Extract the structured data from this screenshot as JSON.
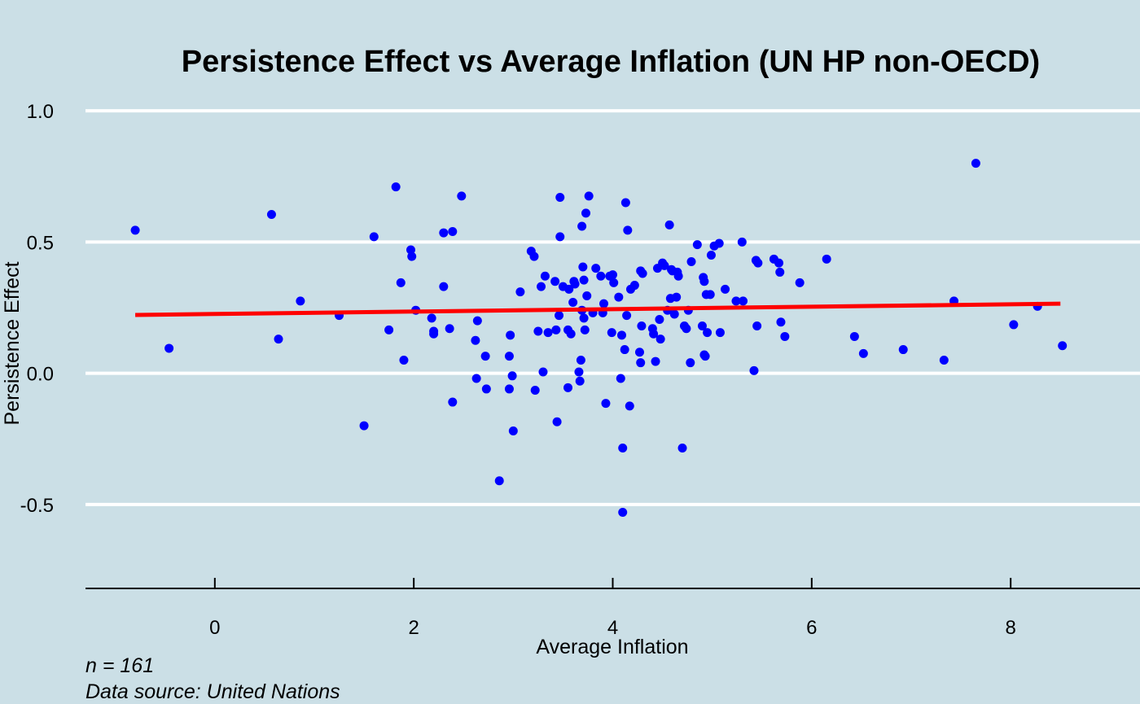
{
  "chart_data": {
    "type": "scatter",
    "title": "Persistence Effect vs Average Inflation (UN HP non-OECD)",
    "xlabel": "Average Inflation",
    "ylabel": "Persistence Effect",
    "caption_lines": [
      "n = 161",
      "Data source: United Nations"
    ],
    "xlim": [
      -1.3,
      9.3
    ],
    "ylim": [
      -0.82,
      1.05
    ],
    "x_ticks": [
      0,
      2,
      4,
      6,
      8
    ],
    "x_tick_labels": [
      "0",
      "2",
      "4",
      "6",
      "8"
    ],
    "y_ticks": [
      1.0,
      0.5,
      0.0,
      -0.5
    ],
    "y_tick_labels": [
      "1.0",
      "0.5",
      "0.0",
      "-0.5"
    ],
    "grid": "horizontal",
    "background_color": "#cbdfe6",
    "grid_color": "#ffffff",
    "point_color": "#0000ff",
    "trend_color": "#ff0000",
    "trend_line": {
      "x": [
        -0.8,
        8.5
      ],
      "y": [
        0.222,
        0.265
      ]
    },
    "points": [
      [
        -0.8,
        0.545
      ],
      [
        -0.46,
        0.095
      ],
      [
        0.57,
        0.605
      ],
      [
        0.64,
        0.13
      ],
      [
        0.86,
        0.275
      ],
      [
        1.25,
        0.22
      ],
      [
        1.5,
        -0.2
      ],
      [
        1.6,
        0.52
      ],
      [
        1.75,
        0.165
      ],
      [
        1.82,
        0.71
      ],
      [
        1.87,
        0.345
      ],
      [
        1.9,
        0.05
      ],
      [
        1.97,
        0.47
      ],
      [
        1.98,
        0.445
      ],
      [
        2.02,
        0.24
      ],
      [
        2.18,
        0.21
      ],
      [
        2.2,
        0.15
      ],
      [
        2.3,
        0.535
      ],
      [
        2.3,
        0.33
      ],
      [
        2.36,
        0.17
      ],
      [
        2.39,
        0.54
      ],
      [
        2.39,
        -0.11
      ],
      [
        2.48,
        0.675
      ],
      [
        2.62,
        0.125
      ],
      [
        2.63,
        -0.02
      ],
      [
        2.64,
        0.2
      ],
      [
        2.72,
        0.065
      ],
      [
        2.73,
        -0.06
      ],
      [
        2.86,
        -0.41
      ],
      [
        2.96,
        0.065
      ],
      [
        2.96,
        -0.06
      ],
      [
        2.97,
        0.145
      ],
      [
        2.99,
        -0.01
      ],
      [
        3.0,
        -0.22
      ],
      [
        3.07,
        0.31
      ],
      [
        3.18,
        0.465
      ],
      [
        3.21,
        0.445
      ],
      [
        3.22,
        -0.065
      ],
      [
        3.25,
        0.16
      ],
      [
        3.28,
        0.33
      ],
      [
        3.3,
        0.005
      ],
      [
        3.32,
        0.37
      ],
      [
        3.42,
        0.35
      ],
      [
        3.43,
        0.165
      ],
      [
        3.44,
        -0.185
      ],
      [
        3.46,
        0.22
      ],
      [
        3.47,
        0.52
      ],
      [
        3.47,
        0.67
      ],
      [
        3.5,
        0.33
      ],
      [
        3.55,
        0.165
      ],
      [
        3.55,
        -0.055
      ],
      [
        3.56,
        0.32
      ],
      [
        3.58,
        0.15
      ],
      [
        3.6,
        0.27
      ],
      [
        3.61,
        0.35
      ],
      [
        3.62,
        0.34
      ],
      [
        3.66,
        0.005
      ],
      [
        3.67,
        -0.03
      ],
      [
        3.68,
        0.05
      ],
      [
        3.69,
        0.24
      ],
      [
        3.69,
        0.56
      ],
      [
        3.7,
        0.405
      ],
      [
        3.71,
        0.355
      ],
      [
        3.71,
        0.21
      ],
      [
        3.72,
        0.165
      ],
      [
        3.73,
        0.61
      ],
      [
        3.74,
        0.295
      ],
      [
        3.76,
        0.675
      ],
      [
        3.8,
        0.23
      ],
      [
        3.83,
        0.4
      ],
      [
        3.88,
        0.37
      ],
      [
        3.9,
        0.23
      ],
      [
        3.91,
        0.265
      ],
      [
        3.93,
        -0.115
      ],
      [
        3.99,
        0.155
      ],
      [
        4.0,
        0.375
      ],
      [
        4.01,
        0.345
      ],
      [
        4.06,
        0.29
      ],
      [
        4.08,
        -0.02
      ],
      [
        4.09,
        0.145
      ],
      [
        4.1,
        -0.53
      ],
      [
        4.1,
        -0.285
      ],
      [
        4.12,
        0.09
      ],
      [
        4.13,
        0.65
      ],
      [
        4.14,
        0.22
      ],
      [
        4.15,
        0.545
      ],
      [
        4.17,
        -0.125
      ],
      [
        4.18,
        0.32
      ],
      [
        4.22,
        0.335
      ],
      [
        4.27,
        0.08
      ],
      [
        4.28,
        0.39
      ],
      [
        4.28,
        0.04
      ],
      [
        4.29,
        0.18
      ],
      [
        4.3,
        0.38
      ],
      [
        4.4,
        0.17
      ],
      [
        4.41,
        0.15
      ],
      [
        4.43,
        0.045
      ],
      [
        4.45,
        0.4
      ],
      [
        4.47,
        0.205
      ],
      [
        4.48,
        0.13
      ],
      [
        4.5,
        0.42
      ],
      [
        4.55,
        0.24
      ],
      [
        4.57,
        0.565
      ],
      [
        4.58,
        0.285
      ],
      [
        4.59,
        0.395
      ],
      [
        4.62,
        0.225
      ],
      [
        4.64,
        0.29
      ],
      [
        4.65,
        0.385
      ],
      [
        4.66,
        0.37
      ],
      [
        4.7,
        -0.285
      ],
      [
        4.72,
        0.18
      ],
      [
        4.74,
        0.17
      ],
      [
        4.76,
        0.24
      ],
      [
        4.78,
        0.04
      ],
      [
        4.79,
        0.425
      ],
      [
        4.85,
        0.49
      ],
      [
        4.9,
        0.18
      ],
      [
        4.91,
        0.365
      ],
      [
        4.92,
        0.35
      ],
      [
        4.92,
        0.07
      ],
      [
        4.93,
        0.065
      ],
      [
        4.94,
        0.3
      ],
      [
        4.95,
        0.155
      ],
      [
        4.98,
        0.3
      ],
      [
        4.99,
        0.45
      ],
      [
        5.02,
        0.485
      ],
      [
        5.07,
        0.495
      ],
      [
        5.08,
        0.155
      ],
      [
        5.13,
        0.32
      ],
      [
        5.24,
        0.275
      ],
      [
        5.3,
        0.5
      ],
      [
        5.31,
        0.275
      ],
      [
        5.42,
        0.01
      ],
      [
        5.44,
        0.43
      ],
      [
        5.45,
        0.18
      ],
      [
        5.46,
        0.42
      ],
      [
        5.62,
        0.435
      ],
      [
        5.67,
        0.42
      ],
      [
        5.68,
        0.385
      ],
      [
        5.69,
        0.195
      ],
      [
        5.73,
        0.14
      ],
      [
        5.88,
        0.345
      ],
      [
        6.15,
        0.435
      ],
      [
        6.43,
        0.14
      ],
      [
        6.52,
        0.075
      ],
      [
        6.92,
        0.09
      ],
      [
        7.33,
        0.05
      ],
      [
        7.43,
        0.275
      ],
      [
        7.65,
        0.8
      ],
      [
        8.03,
        0.185
      ],
      [
        8.27,
        0.255
      ],
      [
        8.52,
        0.105
      ],
      [
        4.52,
        0.41
      ],
      [
        3.35,
        0.155
      ],
      [
        4.6,
        0.39
      ],
      [
        3.97,
        0.37
      ],
      [
        2.2,
        0.16
      ]
    ]
  }
}
